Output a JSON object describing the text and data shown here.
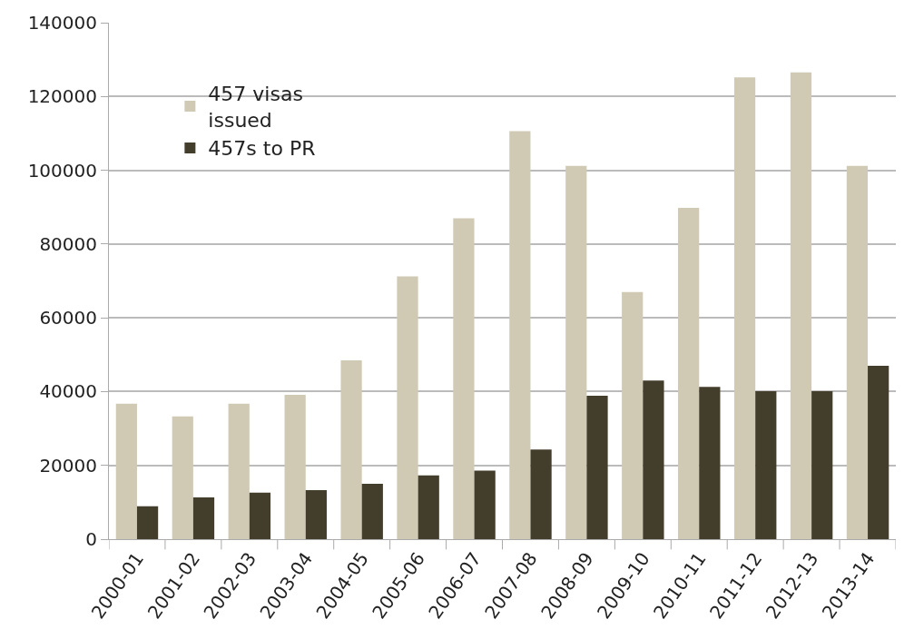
{
  "chart_data": {
    "type": "bar",
    "categories": [
      "2000-01",
      "2001-02",
      "2002-03",
      "2003-04",
      "2004-05",
      "2005-06",
      "2006-07",
      "2007-08",
      "2008-09",
      "2009-10",
      "2010-11",
      "2011-12",
      "2012-13",
      "2013-14"
    ],
    "series": [
      {
        "name": "457 visas issued",
        "color": "#d0c9b4",
        "values": [
          36700,
          33300,
          36700,
          39100,
          48500,
          71200,
          87000,
          110600,
          101200,
          67000,
          89800,
          125200,
          126500,
          101200
        ]
      },
      {
        "name": "457s to PR",
        "color": "#433d2b",
        "values": [
          8900,
          11300,
          12600,
          13300,
          15000,
          17300,
          18600,
          24300,
          38900,
          43000,
          41300,
          40100,
          40100,
          47000
        ]
      }
    ],
    "ylim": [
      0,
      140000
    ],
    "yticks": [
      0,
      20000,
      40000,
      60000,
      80000,
      100000,
      120000,
      140000
    ],
    "grid": "y",
    "legend": "top left"
  }
}
